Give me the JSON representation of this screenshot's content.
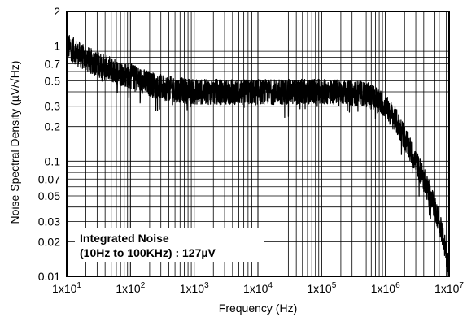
{
  "chart_data": {
    "type": "line",
    "xlabel": "Frequency (Hz)",
    "ylabel": "Noise Spectral Density (µV/√Hz)",
    "x_scale": "log",
    "y_scale": "log",
    "xlim": [
      10,
      10000000
    ],
    "ylim": [
      0.01,
      2
    ],
    "grid": true,
    "x_ticks": [
      10,
      100,
      1000,
      10000,
      100000,
      1000000,
      10000000
    ],
    "x_tick_labels": [
      "1x10",
      "1x10",
      "1x10",
      "1x10",
      "1x10",
      "1x10",
      "1x10"
    ],
    "x_tick_exponents": [
      "1",
      "2",
      "3",
      "4",
      "5",
      "6",
      "7"
    ],
    "y_ticks": [
      0.01,
      0.02,
      0.03,
      0.05,
      0.07,
      0.1,
      0.2,
      0.3,
      0.5,
      0.7,
      1,
      2
    ],
    "y_tick_labels": [
      "0.01",
      "0.02",
      "0.03",
      "0.05",
      "0.07",
      "0.1",
      "0.2",
      "0.3",
      "0.5",
      "0.7",
      "1",
      "2"
    ],
    "annotation": [
      "Integrated Noise",
      "(10Hz to 100KHz) : 127µV"
    ],
    "series": [
      {
        "color": "#000000",
        "noise_fraction": 0.22,
        "x": [
          10,
          12,
          15,
          20,
          30,
          50,
          70,
          100,
          150,
          200,
          300,
          500,
          700,
          1000,
          2000,
          3000,
          5000,
          10000,
          20000,
          50000,
          100000,
          200000,
          500000,
          700000,
          1000000,
          1500000,
          2000000,
          3000000,
          4000000,
          5000000,
          6000000,
          7000000,
          8000000,
          9000000,
          10000000
        ],
        "y": [
          1.0,
          0.95,
          0.85,
          0.78,
          0.7,
          0.62,
          0.58,
          0.55,
          0.5,
          0.47,
          0.44,
          0.42,
          0.41,
          0.4,
          0.4,
          0.4,
          0.4,
          0.4,
          0.4,
          0.4,
          0.4,
          0.4,
          0.38,
          0.35,
          0.3,
          0.22,
          0.16,
          0.1,
          0.07,
          0.05,
          0.04,
          0.03,
          0.022,
          0.016,
          0.012
        ]
      }
    ]
  }
}
